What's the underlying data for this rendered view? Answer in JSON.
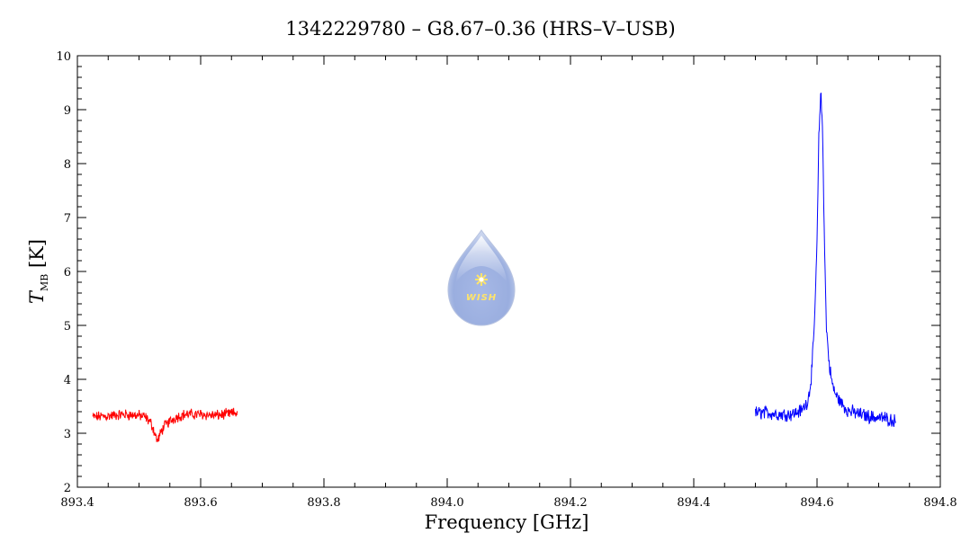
{
  "chart_data": {
    "type": "line",
    "title": "1342229780 – G8.67–0.36 (HRS–V–USB)",
    "xlabel": "Frequency [GHz]",
    "ylabel": {
      "main": "T",
      "sub": "MB",
      "unit": " [K]"
    },
    "xlim": [
      893.4,
      894.8
    ],
    "ylim": [
      2,
      10
    ],
    "x_ticks": [
      "893.4",
      "893.6",
      "893.8",
      "894.0",
      "894.2",
      "894.4",
      "894.6",
      "894.8"
    ],
    "x_tick_values": [
      893.4,
      893.6,
      893.8,
      894.0,
      894.2,
      894.4,
      894.6,
      894.8
    ],
    "y_ticks": [
      "2",
      "3",
      "4",
      "5",
      "6",
      "7",
      "8",
      "9",
      "10"
    ],
    "y_tick_values": [
      2,
      3,
      4,
      5,
      6,
      7,
      8,
      9,
      10
    ],
    "grid": false,
    "series": [
      {
        "color": "#ff0000",
        "x": [
          893.425,
          893.45,
          893.475,
          893.5,
          893.51,
          893.52,
          893.525,
          893.53,
          893.535,
          893.54,
          893.55,
          893.56,
          893.575,
          893.6,
          893.625,
          893.66
        ],
        "y": [
          3.3,
          3.32,
          3.35,
          3.33,
          3.3,
          3.18,
          3.02,
          2.85,
          3.0,
          3.12,
          3.22,
          3.3,
          3.35,
          3.35,
          3.33,
          3.38
        ],
        "noise": 0.08
      },
      {
        "color": "#0000ff",
        "x": [
          894.5,
          894.52,
          894.54,
          894.56,
          894.575,
          894.585,
          894.59,
          894.595,
          894.6,
          894.603,
          894.606,
          894.609,
          894.612,
          894.615,
          894.62,
          894.625,
          894.63,
          894.64,
          894.65,
          894.67,
          894.69,
          894.71,
          894.728
        ],
        "y": [
          3.38,
          3.38,
          3.35,
          3.36,
          3.42,
          3.6,
          3.95,
          4.8,
          6.5,
          8.5,
          9.35,
          8.6,
          6.6,
          5.0,
          4.25,
          3.9,
          3.72,
          3.55,
          3.42,
          3.35,
          3.3,
          3.28,
          3.22
        ],
        "noise": 0.1
      }
    ]
  },
  "logo": {
    "text": "WISH",
    "colors": [
      "#b8c8ea",
      "#8ea4dc",
      "#ffe46a"
    ]
  }
}
